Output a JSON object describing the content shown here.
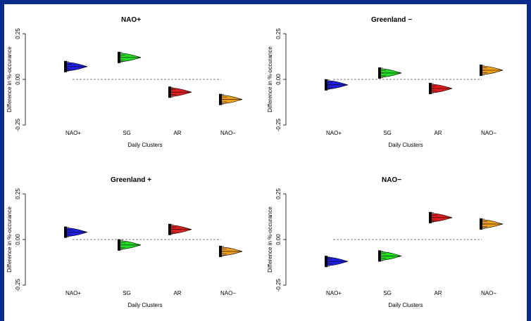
{
  "chart_data": [
    {
      "type": "violin",
      "title": "NAO+",
      "xlabel": "Daily Clusters",
      "ylabel": "Difference in %-occurance",
      "categories": [
        "NAO+",
        "SG",
        "AR",
        "NAO−"
      ],
      "values": [
        0.07,
        0.12,
        -0.07,
        -0.11
      ],
      "colors": [
        "#1f1fe0",
        "#22dd22",
        "#dd1f1f",
        "#f0a020"
      ],
      "ylim": [
        -0.25,
        0.25
      ],
      "yticks": [
        "-0.25",
        "0.00",
        "0.25"
      ],
      "reference_line": 0
    },
    {
      "type": "violin",
      "title": "Greenland −",
      "xlabel": "Daily Clusters",
      "ylabel": "Difference in %-occurance",
      "categories": [
        "NAO+",
        "SG",
        "AR",
        "NAO−"
      ],
      "values": [
        -0.03,
        0.035,
        -0.05,
        0.05
      ],
      "colors": [
        "#1f1fe0",
        "#22dd22",
        "#dd1f1f",
        "#f0a020"
      ],
      "ylim": [
        -0.25,
        0.25
      ],
      "yticks": [
        "-0.25",
        "0.00",
        "0.25"
      ],
      "reference_line": 0
    },
    {
      "type": "violin",
      "title": "Greenland +",
      "xlabel": "Daily Clusters",
      "ylabel": "Difference in %-occurance",
      "categories": [
        "NAO+",
        "SG",
        "AR",
        "NAO−"
      ],
      "values": [
        0.04,
        -0.03,
        0.055,
        -0.065
      ],
      "colors": [
        "#1f1fe0",
        "#22dd22",
        "#dd1f1f",
        "#f0a020"
      ],
      "ylim": [
        -0.25,
        0.25
      ],
      "yticks": [
        "-0.25",
        "0.00",
        "0.25"
      ],
      "reference_line": 0
    },
    {
      "type": "violin",
      "title": "NAO−",
      "xlabel": "Daily Clusters",
      "ylabel": "Difference in %-occurance",
      "categories": [
        "NAO+",
        "SG",
        "AR",
        "NAO−"
      ],
      "values": [
        -0.12,
        -0.09,
        0.12,
        0.085
      ],
      "colors": [
        "#1f1fe0",
        "#22dd22",
        "#dd1f1f",
        "#f0a020"
      ],
      "ylim": [
        -0.25,
        0.25
      ],
      "yticks": [
        "-0.25",
        "0.00",
        "0.25"
      ],
      "reference_line": 0
    }
  ]
}
